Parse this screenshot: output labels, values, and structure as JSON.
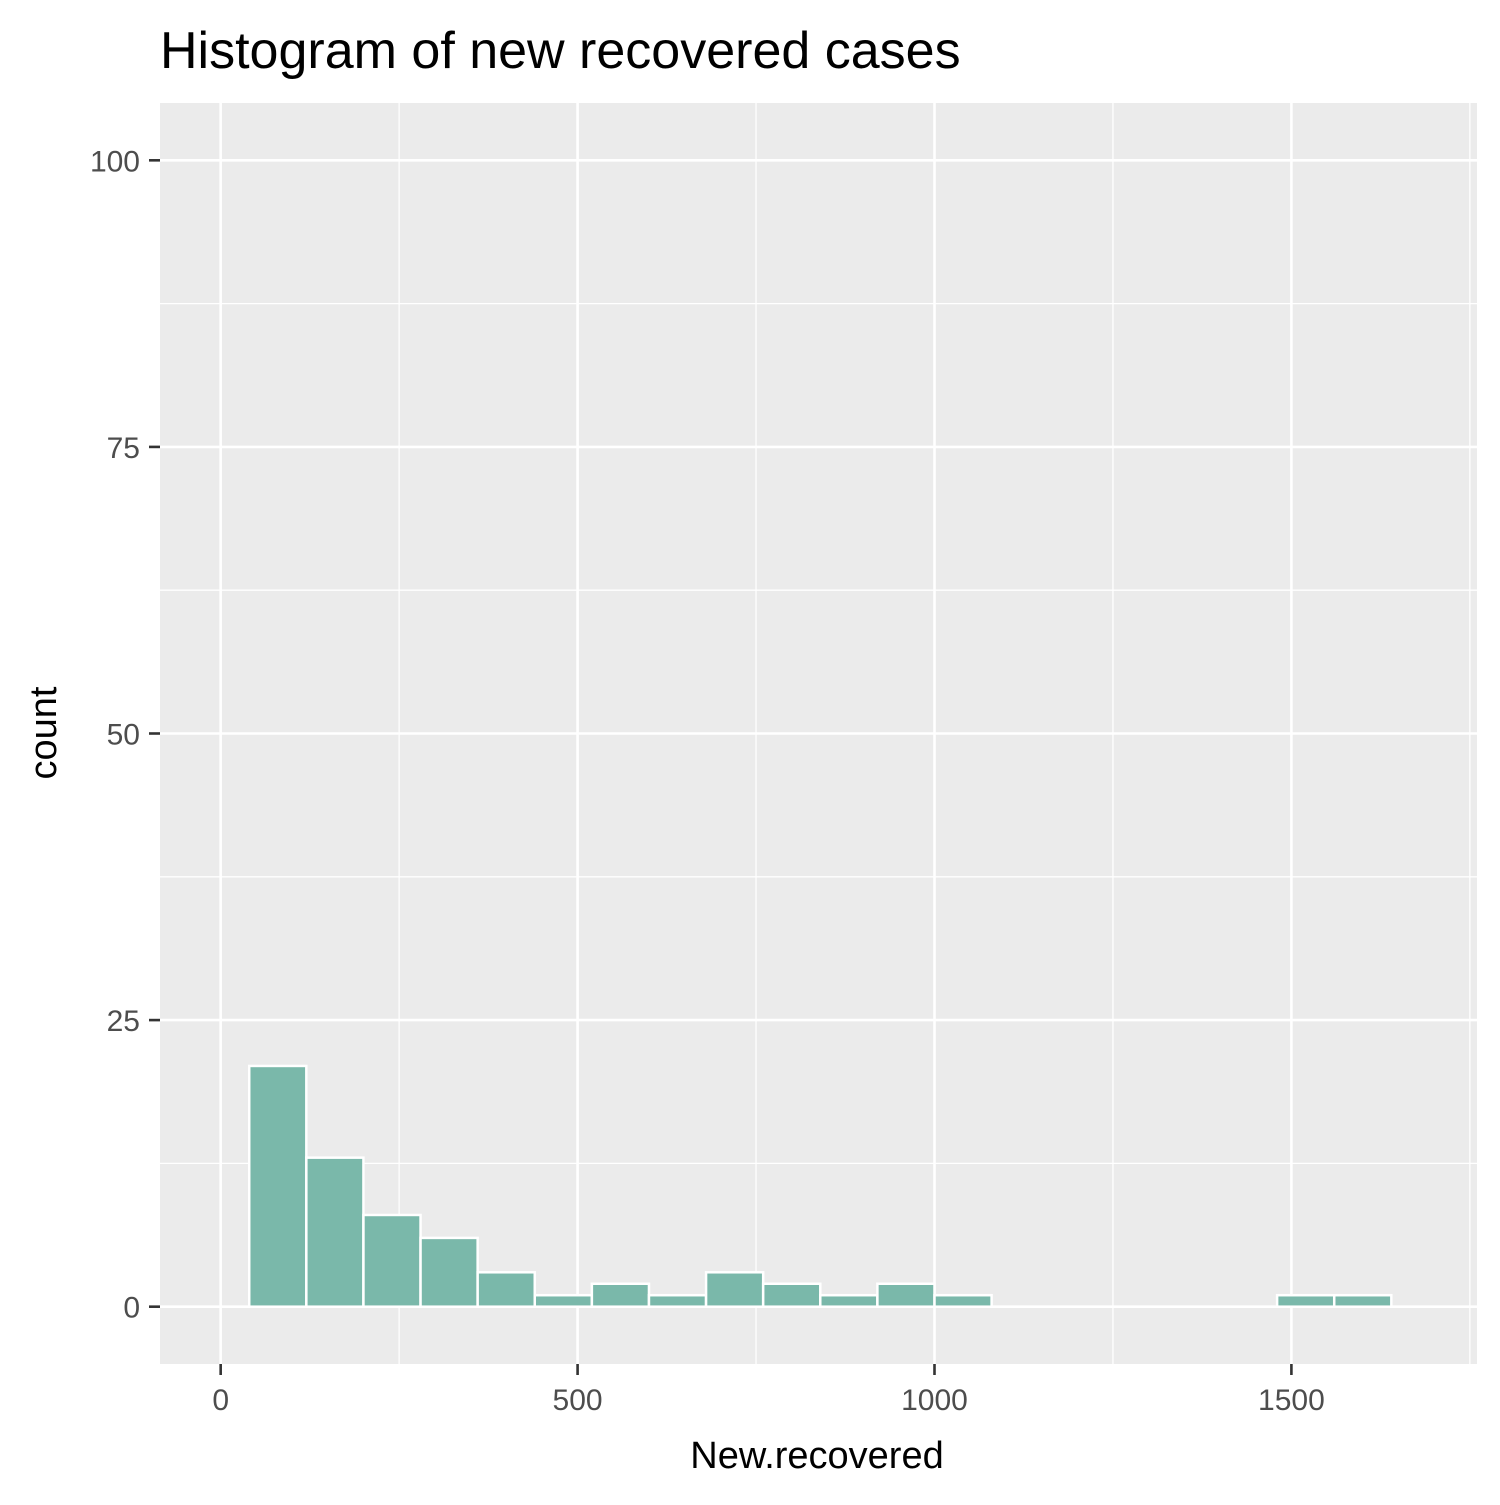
{
  "chart_data": {
    "type": "bar",
    "title": "Histogram of new recovered cases",
    "xlabel": "New.recovered",
    "ylabel": "count",
    "xlim": [
      -85,
      1760
    ],
    "ylim": [
      -5,
      105
    ],
    "x_ticks": [
      0,
      500,
      1000,
      1500
    ],
    "x_tick_labels": [
      "0",
      "500",
      "1000",
      "1500"
    ],
    "y_ticks": [
      0,
      25,
      50,
      75,
      100
    ],
    "y_tick_labels": [
      "0",
      "25",
      "50",
      "75",
      "100"
    ],
    "bin_width": 80,
    "bins": [
      {
        "start": 40,
        "end": 120,
        "count": 21
      },
      {
        "start": 120,
        "end": 200,
        "count": 13
      },
      {
        "start": 200,
        "end": 280,
        "count": 8
      },
      {
        "start": 280,
        "end": 360,
        "count": 6
      },
      {
        "start": 360,
        "end": 440,
        "count": 3
      },
      {
        "start": 440,
        "end": 520,
        "count": 1
      },
      {
        "start": 520,
        "end": 600,
        "count": 2
      },
      {
        "start": 600,
        "end": 680,
        "count": 1
      },
      {
        "start": 680,
        "end": 760,
        "count": 3
      },
      {
        "start": 760,
        "end": 840,
        "count": 2
      },
      {
        "start": 840,
        "end": 920,
        "count": 1
      },
      {
        "start": 920,
        "end": 1000,
        "count": 2
      },
      {
        "start": 1000,
        "end": 1080,
        "count": 1
      },
      {
        "start": 1080,
        "end": 1160,
        "count": 0
      },
      {
        "start": 1160,
        "end": 1240,
        "count": 0
      },
      {
        "start": 1240,
        "end": 1320,
        "count": 0
      },
      {
        "start": 1320,
        "end": 1400,
        "count": 0
      },
      {
        "start": 1400,
        "end": 1480,
        "count": 0
      },
      {
        "start": 1480,
        "end": 1560,
        "count": 1
      },
      {
        "start": 1560,
        "end": 1640,
        "count": 1
      }
    ],
    "grid": true,
    "legend": "none",
    "colors": {
      "bar_fill": "#7ab8aa",
      "bar_outline": "#ffffff",
      "panel_background": "#ebebeb",
      "grid": "#ffffff",
      "tick_label": "#4d4d4d",
      "axis_tick": "#333333",
      "text": "#000000"
    }
  }
}
